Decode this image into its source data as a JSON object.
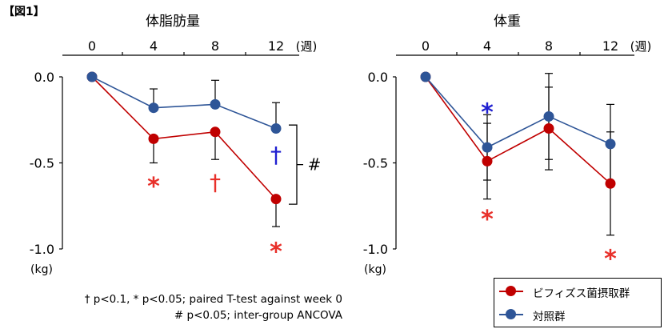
{
  "figure_label": "【図1】",
  "footnotes": [
    "† p<0.1, * p<0.05; paired T-test against week 0",
    "# p<0.05; inter-group ANCOVA"
  ],
  "legend": [
    {
      "label": "ビフィズス菌摂取群",
      "color": "#c00000"
    },
    {
      "label": "対照群",
      "color": "#2e5597"
    }
  ],
  "colors": {
    "probiotic": "#c00000",
    "control": "#2e5597",
    "sig_red": "#e8302a",
    "sig_blue": "#1f1fd0"
  },
  "chart_data": [
    {
      "type": "line",
      "title": "体脂肪量",
      "unit_label": "(kg)",
      "x_unit": "(週)",
      "x": [
        0,
        4,
        8,
        12
      ],
      "xticklabels": [
        "0",
        "4",
        "8",
        "12"
      ],
      "yticklabels": [
        "0.0",
        "-0.5",
        "-1.0"
      ],
      "ylim": [
        -1.0,
        0.0
      ],
      "series": [
        {
          "key": "probiotic",
          "name": "ビフィズス菌摂取群",
          "values": [
            0.0,
            -0.36,
            -0.32,
            -0.71
          ],
          "err": [
            0,
            0.14,
            0.16,
            0.16
          ]
        },
        {
          "key": "control",
          "name": "対照群",
          "values": [
            0.0,
            -0.18,
            -0.16,
            -0.3
          ],
          "err": [
            0,
            0.11,
            0.14,
            0.15
          ]
        }
      ],
      "annotations": [
        {
          "x": 4,
          "y": -0.6,
          "text": "*",
          "color": "sig_red"
        },
        {
          "x": 8,
          "y": -0.62,
          "text": "†",
          "color": "sig_red"
        },
        {
          "x": 12,
          "y": -0.98,
          "text": "*",
          "color": "sig_red"
        },
        {
          "x": 12,
          "y": -0.46,
          "text": "†",
          "color": "sig_blue"
        }
      ],
      "group_mark": {
        "text": "#",
        "y_from": -0.28,
        "y_to": -0.74
      }
    },
    {
      "type": "line",
      "title": "体重",
      "unit_label": "(kg)",
      "x_unit": "(週)",
      "x": [
        0,
        4,
        8,
        12
      ],
      "xticklabels": [
        "0",
        "4",
        "8",
        "12"
      ],
      "yticklabels": [
        "0.0",
        "-0.5",
        "-1.0"
      ],
      "ylim": [
        -1.0,
        0.0
      ],
      "series": [
        {
          "key": "probiotic",
          "name": "ビフィズス菌摂取群",
          "values": [
            0.0,
            -0.49,
            -0.3,
            -0.62
          ],
          "err": [
            0,
            0.22,
            0.24,
            0.3
          ]
        },
        {
          "key": "control",
          "name": "対照群",
          "values": [
            0.0,
            -0.41,
            -0.23,
            -0.39
          ],
          "err": [
            0,
            0.19,
            0.25,
            0.23
          ]
        }
      ],
      "annotations": [
        {
          "x": 4,
          "y": -0.17,
          "text": "*",
          "color": "sig_blue"
        },
        {
          "x": 4,
          "y": -0.79,
          "text": "*",
          "color": "sig_red"
        },
        {
          "x": 12,
          "y": -1.02,
          "text": "*",
          "color": "sig_red"
        }
      ]
    }
  ]
}
